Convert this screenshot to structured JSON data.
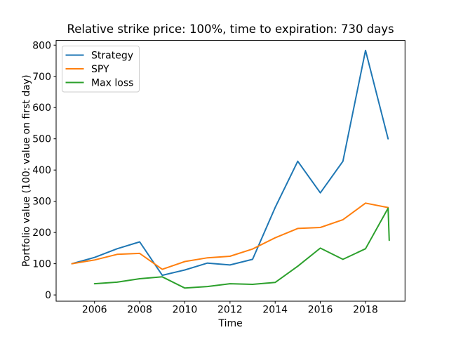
{
  "chart_data": {
    "type": "line",
    "title": "Relative strike price: 100%, time to expiration: 730 days",
    "xlabel": "Time",
    "ylabel": "Portfolio value (100: value on first day)",
    "xlim": [
      2004.3,
      2019.75
    ],
    "ylim": [
      -20,
      815
    ],
    "xticks": [
      2006,
      2008,
      2010,
      2012,
      2014,
      2016,
      2018
    ],
    "yticks": [
      0,
      100,
      200,
      300,
      400,
      500,
      600,
      700,
      800
    ],
    "grid": false,
    "legend": {
      "position": "upper-left"
    },
    "series": [
      {
        "name": "Strategy",
        "color": "#1f77b4",
        "x": [
          2005,
          2006,
          2007,
          2008,
          2009,
          2010,
          2011,
          2012,
          2013,
          2014,
          2015,
          2016,
          2017,
          2018,
          2019
        ],
        "values": [
          100,
          120,
          148,
          170,
          63,
          80,
          102,
          96,
          114,
          280,
          428,
          327,
          428,
          783,
          500
        ]
      },
      {
        "name": "SPY",
        "color": "#ff7f0e",
        "x": [
          2005,
          2006,
          2007,
          2008,
          2009,
          2010,
          2011,
          2012,
          2013,
          2014,
          2015,
          2016,
          2017,
          2018,
          2019
        ],
        "values": [
          100,
          112,
          130,
          133,
          82,
          107,
          119,
          124,
          147,
          183,
          213,
          216,
          241,
          294,
          280
        ]
      },
      {
        "name": "Max loss",
        "color": "#2ca02c",
        "x": [
          2006,
          2007,
          2008,
          2009,
          2010,
          2011,
          2012,
          2013,
          2014,
          2015,
          2016,
          2017,
          2018,
          2019,
          2019.05
        ],
        "values": [
          36,
          41,
          52,
          58,
          22,
          27,
          36,
          34,
          40,
          92,
          150,
          114,
          148,
          278,
          175
        ]
      }
    ],
    "style": {
      "spine_color": "#000000",
      "background": "#ffffff",
      "legend_border": "#cccccc",
      "line_width": 2
    }
  }
}
